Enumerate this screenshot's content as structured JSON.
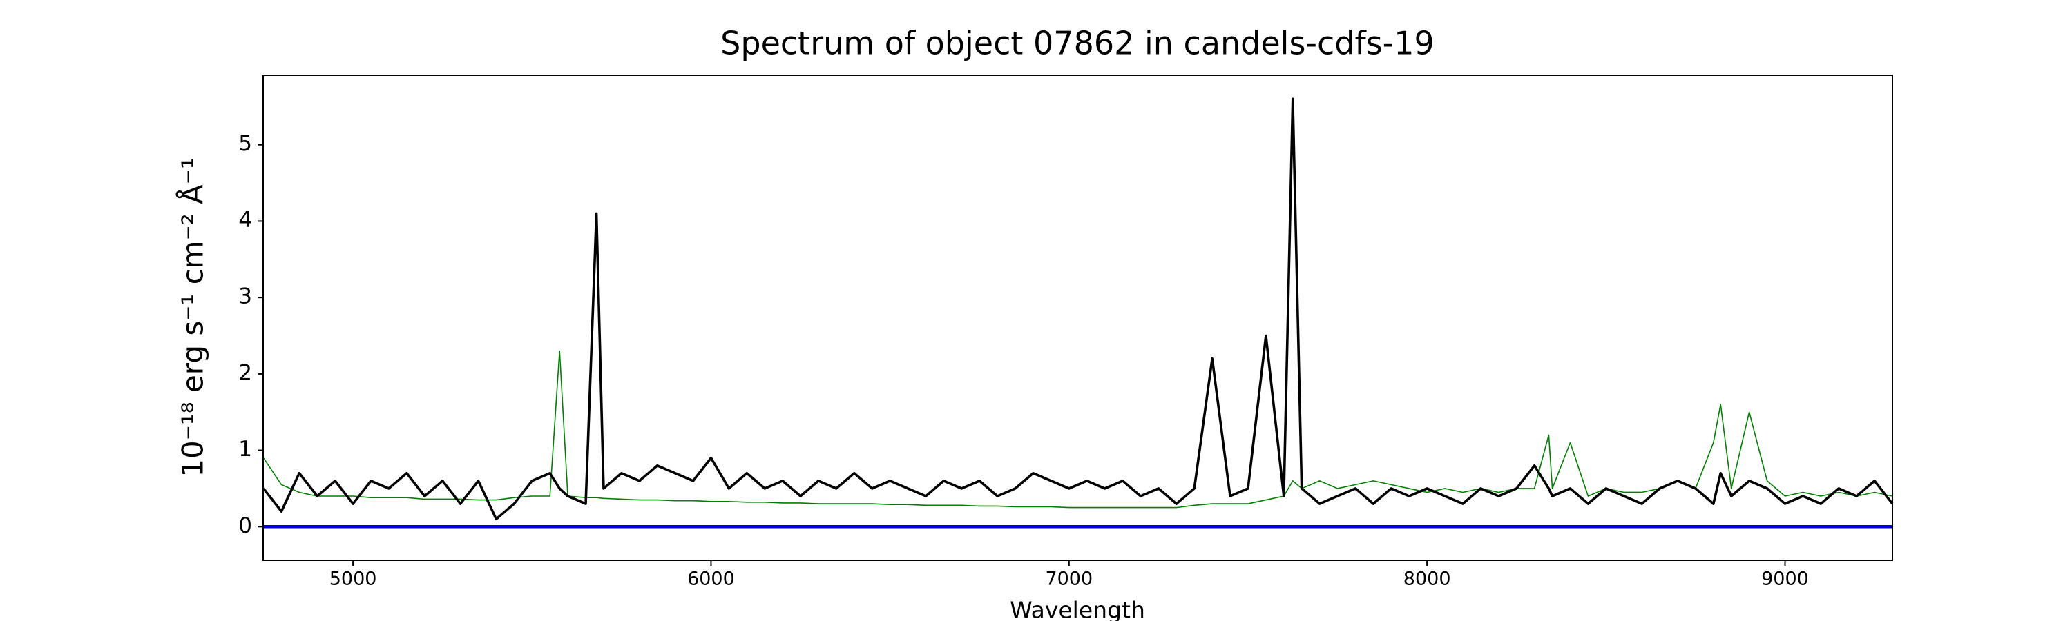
{
  "chart_data": {
    "type": "line",
    "title": "Spectrum of object 07862 in candels-cdfs-19",
    "x_label": "Wavelength",
    "y_label": "10⁻¹⁸ erg s⁻¹ cm⁻² Å⁻¹",
    "x": [
      4750,
      4800,
      4850,
      4900,
      4950,
      5000,
      5050,
      5100,
      5150,
      5200,
      5250,
      5300,
      5350,
      5400,
      5450,
      5500,
      5550,
      5577,
      5600,
      5650,
      5680,
      5700,
      5750,
      5800,
      5850,
      5900,
      5950,
      6000,
      6050,
      6100,
      6150,
      6200,
      6250,
      6300,
      6350,
      6400,
      6450,
      6500,
      6550,
      6600,
      6650,
      6700,
      6750,
      6800,
      6850,
      6900,
      6950,
      7000,
      7050,
      7100,
      7150,
      7200,
      7250,
      7300,
      7350,
      7400,
      7450,
      7500,
      7550,
      7600,
      7625,
      7650,
      7700,
      7750,
      7800,
      7850,
      7900,
      7950,
      8000,
      8050,
      8100,
      8150,
      8200,
      8250,
      8300,
      8340,
      8350,
      8400,
      8450,
      8500,
      8550,
      8600,
      8650,
      8700,
      8750,
      8800,
      8820,
      8850,
      8900,
      8950,
      9000,
      9050,
      9100,
      9150,
      9200,
      9250,
      9300
    ],
    "series": [
      {
        "color": "#008000",
        "values": [
          0.9,
          0.55,
          0.45,
          0.4,
          0.4,
          0.4,
          0.38,
          0.38,
          0.38,
          0.36,
          0.36,
          0.36,
          0.35,
          0.35,
          0.38,
          0.4,
          0.4,
          2.3,
          0.4,
          0.38,
          0.38,
          0.37,
          0.36,
          0.35,
          0.35,
          0.34,
          0.34,
          0.33,
          0.33,
          0.32,
          0.32,
          0.31,
          0.31,
          0.3,
          0.3,
          0.3,
          0.3,
          0.29,
          0.29,
          0.28,
          0.28,
          0.28,
          0.27,
          0.27,
          0.26,
          0.26,
          0.26,
          0.25,
          0.25,
          0.25,
          0.25,
          0.25,
          0.25,
          0.25,
          0.28,
          0.3,
          0.3,
          0.3,
          0.35,
          0.4,
          0.6,
          0.5,
          0.6,
          0.5,
          0.55,
          0.6,
          0.55,
          0.5,
          0.45,
          0.5,
          0.45,
          0.5,
          0.45,
          0.5,
          0.5,
          1.2,
          0.5,
          1.1,
          0.4,
          0.5,
          0.45,
          0.45,
          0.5,
          0.6,
          0.5,
          1.1,
          1.6,
          0.5,
          1.5,
          0.6,
          0.4,
          0.45,
          0.4,
          0.45,
          0.4,
          0.45,
          0.4
        ]
      },
      {
        "color": "#000000",
        "values": [
          0.5,
          0.2,
          0.7,
          0.4,
          0.6,
          0.3,
          0.6,
          0.5,
          0.7,
          0.4,
          0.6,
          0.3,
          0.6,
          0.1,
          0.3,
          0.6,
          0.7,
          0.5,
          0.4,
          0.3,
          4.1,
          0.5,
          0.7,
          0.6,
          0.8,
          0.7,
          0.6,
          0.9,
          0.5,
          0.7,
          0.5,
          0.6,
          0.4,
          0.6,
          0.5,
          0.7,
          0.5,
          0.6,
          0.5,
          0.4,
          0.6,
          0.5,
          0.6,
          0.4,
          0.5,
          0.7,
          0.6,
          0.5,
          0.6,
          0.5,
          0.6,
          0.4,
          0.5,
          0.3,
          0.5,
          2.2,
          0.4,
          0.5,
          2.5,
          0.4,
          5.6,
          0.5,
          0.3,
          0.4,
          0.5,
          0.3,
          0.5,
          0.4,
          0.5,
          0.4,
          0.3,
          0.5,
          0.4,
          0.5,
          0.8,
          0.5,
          0.4,
          0.5,
          0.3,
          0.5,
          0.4,
          0.3,
          0.5,
          0.6,
          0.5,
          0.3,
          0.7,
          0.4,
          0.6,
          0.5,
          0.3,
          0.4,
          0.3,
          0.5,
          0.4,
          0.6,
          0.3
        ]
      }
    ],
    "reference_line": {
      "y": 0,
      "color": "#0000cc"
    },
    "xlim": [
      4749,
      9300
    ],
    "ylim": [
      -0.44,
      5.91
    ],
    "xticks": [
      5000,
      6000,
      7000,
      8000,
      9000
    ],
    "yticks": [
      0,
      1,
      2,
      3,
      4,
      5
    ]
  }
}
